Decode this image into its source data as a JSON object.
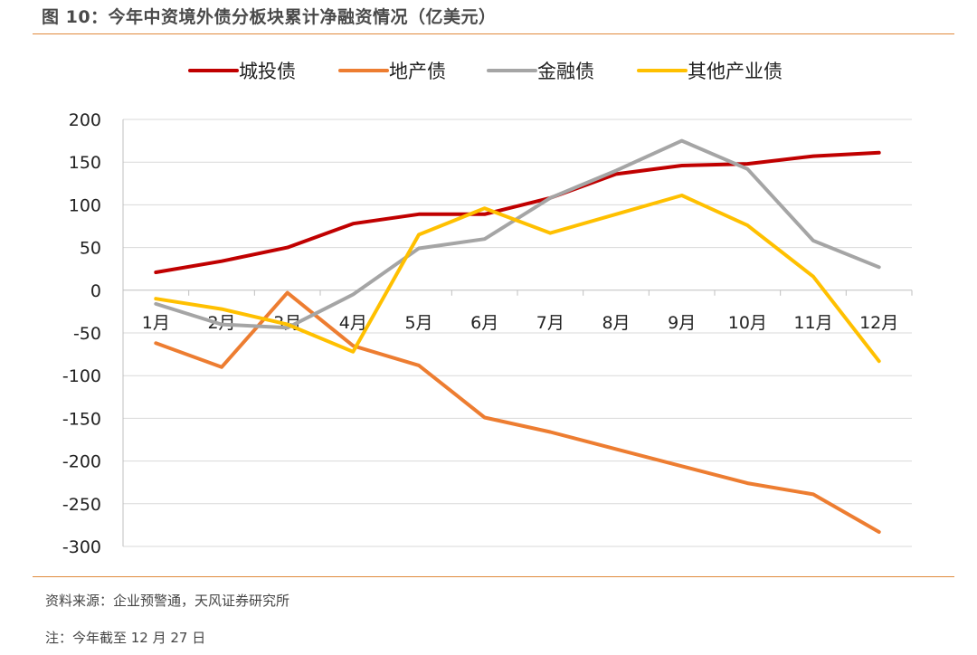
{
  "figure": {
    "title": "图 10：今年中资境外债分板块累计净融资情况（亿美元）",
    "source": "资料来源：企业预警通，天风证券研究所",
    "note": "注：今年截至 12 月 27 日"
  },
  "chart_data": {
    "type": "line",
    "title": "今年中资境外债分板块累计净融资情况（亿美元）",
    "xlabel": "",
    "ylabel": "",
    "categories": [
      "1月",
      "2月",
      "3月",
      "4月",
      "5月",
      "6月",
      "7月",
      "8月",
      "9月",
      "10月",
      "11月",
      "12月"
    ],
    "ylim": [
      -300,
      200
    ],
    "yticks": [
      200,
      150,
      100,
      50,
      0,
      -50,
      -100,
      -150,
      -200,
      -250,
      -300
    ],
    "grid": "horizontal",
    "legend_position": "top",
    "series": [
      {
        "name": "城投债",
        "color": "#c00000",
        "values": [
          21,
          34,
          50,
          78,
          89,
          89,
          108,
          136,
          146,
          148,
          157,
          161
        ]
      },
      {
        "name": "地产债",
        "color": "#ed7d31",
        "values": [
          -62,
          -90,
          -3,
          -65,
          -88,
          -149,
          -166,
          -186,
          -206,
          -226,
          -239,
          -283
        ]
      },
      {
        "name": "金融债",
        "color": "#a5a5a5",
        "values": [
          -16,
          -40,
          -44,
          -5,
          49,
          60,
          108,
          140,
          175,
          142,
          58,
          27
        ]
      },
      {
        "name": "其他产业债",
        "color": "#ffc000",
        "values": [
          -10,
          -22,
          -40,
          -72,
          65,
          96,
          67,
          89,
          111,
          76,
          16,
          -83
        ]
      }
    ]
  }
}
